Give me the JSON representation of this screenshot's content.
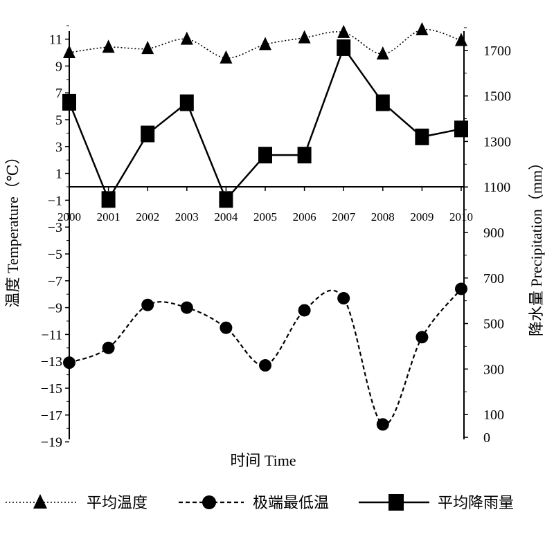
{
  "chart_data": {
    "type": "line",
    "categories": [
      "2000",
      "2001",
      "2002",
      "2003",
      "2004",
      "2005",
      "2006",
      "2007",
      "2008",
      "2009",
      "2010"
    ],
    "series": [
      {
        "name": "平均温度",
        "axis": "left",
        "style": "dotted",
        "marker": "triangle",
        "values": [
          10.0,
          10.4,
          10.3,
          11.0,
          9.6,
          10.6,
          11.1,
          11.5,
          9.9,
          11.7,
          10.9
        ]
      },
      {
        "name": "极端最低温",
        "axis": "left",
        "style": "dashed",
        "marker": "circle",
        "values": [
          -13.1,
          -12.0,
          -8.8,
          -9.0,
          -10.5,
          -13.3,
          -9.2,
          -8.3,
          -17.7,
          -11.2,
          -7.6
        ]
      },
      {
        "name": "平均降雨量",
        "axis": "right",
        "style": "solid",
        "marker": "square",
        "values": [
          1472,
          1045,
          1333,
          1470,
          1045,
          1240,
          1240,
          1712,
          1470,
          1320,
          1355
        ]
      }
    ],
    "ylabel": "温度 Temperature（℃）",
    "y2label": "降水量 Precipitation（mm）",
    "xlabel": "时间 Time",
    "ylim": [
      -19,
      12
    ],
    "y2lim": [
      0,
      1800
    ],
    "y_ticks": [
      "11",
      "9",
      "7",
      "5",
      "3",
      "1",
      "-1",
      "-3",
      "-5",
      "-7",
      "-9",
      "-11",
      "-13",
      "-15",
      "-17",
      "-19"
    ],
    "y2_ticks": [
      "1700",
      "1500",
      "1300",
      "1100",
      "900",
      "700",
      "500",
      "300",
      "100",
      "0"
    ],
    "zero_line_at": 0,
    "grid": false,
    "legend_position": "bottom"
  }
}
